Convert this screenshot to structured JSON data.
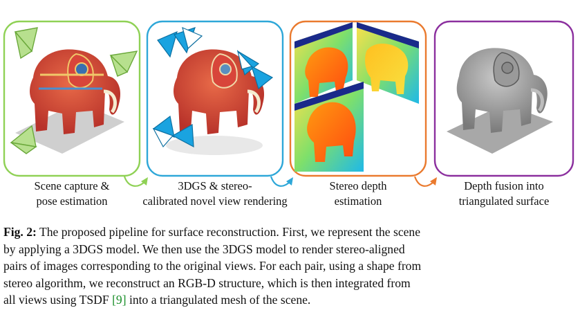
{
  "stages": [
    {
      "line1": "Scene capture &",
      "line2": "pose estimation",
      "color": "#8fd155"
    },
    {
      "line1": "3DGS & stereo-",
      "line2": "calibrated novel view rendering",
      "color": "#2ea7d8"
    },
    {
      "line1": "Stereo depth",
      "line2": "estimation",
      "color": "#ea7a2e"
    },
    {
      "line1": "Depth fusion into",
      "line2": "triangulated surface",
      "color": "#8b2f9e"
    }
  ],
  "caption": {
    "fig_label": "Fig. 2:",
    "line1_rest": " The proposed pipeline for surface reconstruction. First, we represent the scene",
    "line2": "by applying a 3DGS model. We then use the 3DGS model to render stereo-aligned",
    "line3": "pairs of images corresponding to the original views. For each pair, using a shape from",
    "line4": "stereo algorithm, we reconstruct an RGB-D structure, which is then integrated from",
    "line5_a": "all views using TSDF ",
    "cite": "[9]",
    "line5_b": " into a triangulated mesh of the scene."
  }
}
